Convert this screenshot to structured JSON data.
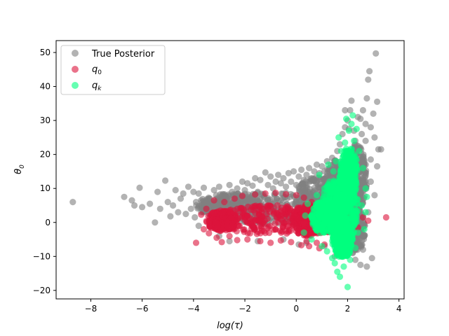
{
  "chart_data": {
    "type": "scatter",
    "title": "",
    "xlabel": "log(τ)",
    "ylabel_main": "θ",
    "ylabel_sub": "0",
    "xlim": [
      -9.35,
      4.2
    ],
    "ylim": [
      -22.5,
      53.5
    ],
    "xticks": [
      -8,
      -6,
      -4,
      -2,
      0,
      2,
      4
    ],
    "yticks": [
      -20,
      -10,
      0,
      10,
      20,
      30,
      40,
      50
    ],
    "grid": false,
    "legend": {
      "placement": "top-left",
      "entries": [
        {
          "label": "True Posterior",
          "color": "#808080"
        },
        {
          "label": "q",
          "sub": "0",
          "color": "#dc143c"
        },
        {
          "label": "q",
          "sub": "k",
          "color": "#00ff7f"
        }
      ]
    },
    "series": [
      {
        "name": "True Posterior",
        "color": "#808080",
        "points": [
          [
            -8.7,
            6
          ],
          [
            -6.7,
            7.5
          ],
          [
            -6.3,
            5
          ],
          [
            -6.4,
            6.5
          ],
          [
            -6.1,
            10.2
          ],
          [
            -6.0,
            4.5
          ],
          [
            -5.7,
            5.5
          ],
          [
            -5.5,
            0
          ],
          [
            -5.4,
            9
          ],
          [
            -5.3,
            4
          ],
          [
            -5.1,
            12.3
          ],
          [
            -5.0,
            6
          ],
          [
            -4.9,
            1.8
          ],
          [
            -4.8,
            5
          ],
          [
            -4.7,
            9.5
          ],
          [
            -4.6,
            3
          ],
          [
            -4.5,
            7
          ],
          [
            -4.4,
            8.5
          ],
          [
            -4.3,
            2.5
          ],
          [
            -4.2,
            10.5
          ],
          [
            -4.1,
            4
          ],
          [
            -4.0,
            9
          ],
          [
            -3.95,
            1.5
          ],
          [
            -3.9,
            6
          ],
          [
            -3.8,
            8.5
          ],
          [
            -3.7,
            3
          ],
          [
            -3.6,
            10.2
          ],
          [
            -3.5,
            5
          ],
          [
            -3.4,
            7
          ],
          [
            -3.3,
            2
          ],
          [
            -3.2,
            9.5
          ],
          [
            -3.1,
            4.5
          ],
          [
            -3.0,
            10.5
          ],
          [
            -2.9,
            3.5
          ],
          [
            -2.8,
            8
          ],
          [
            -2.7,
            6
          ],
          [
            -2.6,
            11
          ],
          [
            -2.5,
            9
          ],
          [
            -2.4,
            3
          ],
          [
            -2.3,
            10
          ],
          [
            -2.2,
            7.5
          ],
          [
            -2.1,
            12
          ],
          [
            -2.0,
            9.5
          ],
          [
            -1.9,
            11.5
          ],
          [
            -1.8,
            6
          ],
          [
            -1.7,
            10.8
          ],
          [
            -1.6,
            13
          ],
          [
            -1.5,
            9
          ],
          [
            -1.4,
            12.5
          ],
          [
            -1.3,
            8
          ],
          [
            -1.2,
            14.7
          ],
          [
            -1.1,
            11
          ],
          [
            -1.0,
            13.5
          ],
          [
            -0.9,
            10
          ],
          [
            -0.8,
            12
          ],
          [
            -0.7,
            14
          ],
          [
            -0.6,
            11.5
          ],
          [
            -0.5,
            13
          ],
          [
            -0.4,
            10.5
          ],
          [
            -0.3,
            14.5
          ],
          [
            -0.2,
            12
          ],
          [
            -0.1,
            15
          ],
          [
            0.0,
            11
          ],
          [
            0.1,
            13.5
          ],
          [
            0.2,
            15.5
          ],
          [
            0.3,
            12.5
          ],
          [
            0.4,
            14
          ],
          [
            0.5,
            16
          ],
          [
            0.6,
            13
          ],
          [
            0.7,
            15
          ],
          [
            0.8,
            17
          ],
          [
            0.9,
            14.5
          ],
          [
            1.0,
            16.5
          ],
          [
            1.1,
            15
          ],
          [
            1.2,
            18
          ],
          [
            1.3,
            16
          ],
          [
            1.4,
            19
          ],
          [
            1.5,
            17.5
          ],
          [
            1.6,
            21
          ],
          [
            1.7,
            23
          ],
          [
            1.8,
            26
          ],
          [
            1.9,
            28
          ],
          [
            2.0,
            30
          ],
          [
            2.1,
            33
          ],
          [
            2.15,
            35.8
          ],
          [
            2.25,
            27
          ],
          [
            2.3,
            24
          ],
          [
            2.4,
            31
          ],
          [
            2.5,
            22
          ],
          [
            2.55,
            26
          ],
          [
            2.6,
            33
          ],
          [
            2.7,
            29
          ],
          [
            2.75,
            36.5
          ],
          [
            2.8,
            42
          ],
          [
            2.85,
            44.5
          ],
          [
            2.9,
            28
          ],
          [
            3.0,
            32
          ],
          [
            3.05,
            25
          ],
          [
            3.1,
            49.7
          ],
          [
            3.15,
            35.5
          ],
          [
            3.2,
            21.5
          ],
          [
            3.3,
            21.5
          ],
          [
            3.15,
            16.5
          ],
          [
            2.9,
            18.5
          ],
          [
            3.05,
            8
          ],
          [
            2.95,
            -10.5
          ],
          [
            2.6,
            -8
          ],
          [
            2.5,
            -12.5
          ],
          [
            2.75,
            -13
          ],
          [
            2.3,
            -11
          ],
          [
            2.2,
            -9
          ],
          [
            1.5,
            -10
          ],
          [
            1.1,
            -7
          ],
          [
            0.4,
            -6
          ],
          [
            0.1,
            -6.5
          ],
          [
            -0.5,
            -5
          ],
          [
            -1.5,
            -5.5
          ],
          [
            -2.6,
            -5.5
          ],
          [
            -3.0,
            -4
          ],
          [
            -3.8,
            -1
          ],
          [
            -3.3,
            1
          ],
          [
            2.8,
            3
          ],
          [
            2.9,
            12
          ],
          [
            2.65,
            14
          ],
          [
            2.4,
            9.5
          ],
          [
            2.35,
            18
          ],
          [
            1.9,
            33
          ],
          [
            2.05,
            27.5
          ],
          [
            2.5,
            30.5
          ],
          [
            2.7,
            24
          ]
        ],
        "blobs": [
          {
            "cx": -0.8,
            "cy": 4.2,
            "rx": 2.6,
            "ry": 4.8
          },
          {
            "cx": -2.6,
            "cy": 5.0,
            "rx": 1.3,
            "ry": 3.6
          },
          {
            "cx": 0.9,
            "cy": 7.5,
            "rx": 1.0,
            "ry": 5.8
          },
          {
            "cx": 1.6,
            "cy": 10.0,
            "rx": 0.55,
            "ry": 8.5
          },
          {
            "cx": 2.3,
            "cy": 13.0,
            "rx": 0.45,
            "ry": 10.0
          },
          {
            "cx": 2.2,
            "cy": -2.0,
            "rx": 0.5,
            "ry": 7.0
          }
        ]
      },
      {
        "name": "q0",
        "color": "#dc143c",
        "points": [
          [
            -3.9,
            -6
          ],
          [
            -3.6,
            -2
          ],
          [
            -3.7,
            2.3
          ],
          [
            -3.5,
            4
          ],
          [
            -3.4,
            -3.2
          ],
          [
            -3.2,
            6.5
          ],
          [
            -3.1,
            -4.5
          ],
          [
            -2.9,
            -5.8
          ],
          [
            -2.8,
            6
          ],
          [
            -2.6,
            -4
          ],
          [
            -2.4,
            7
          ],
          [
            -2.3,
            -5.2
          ],
          [
            -2.1,
            7.8
          ],
          [
            -1.9,
            -5
          ],
          [
            -1.6,
            8.2
          ],
          [
            -1.4,
            -5.5
          ],
          [
            -1.2,
            8.5
          ],
          [
            -1.0,
            -6
          ],
          [
            -0.8,
            8.7
          ],
          [
            -0.6,
            -5.3
          ],
          [
            -0.4,
            8.3
          ],
          [
            -0.2,
            -5.8
          ],
          [
            0.0,
            8
          ],
          [
            0.2,
            -6.7
          ],
          [
            0.3,
            7.3
          ],
          [
            0.4,
            -5.5
          ],
          [
            0.5,
            -7
          ],
          [
            0.6,
            6
          ],
          [
            0.8,
            -6
          ],
          [
            1.1,
            -6.5
          ],
          [
            1.5,
            4.5
          ],
          [
            2.2,
            2
          ],
          [
            2.6,
            1.5
          ],
          [
            3.5,
            1.5
          ],
          [
            2.8,
            0.5
          ],
          [
            2.4,
            -1.5
          ],
          [
            1.9,
            -6.8
          ],
          [
            0.9,
            -7.6
          ]
        ],
        "blobs": [
          {
            "cx": -1.1,
            "cy": 0.8,
            "rx": 2.2,
            "ry": 4.3
          },
          {
            "cx": -2.9,
            "cy": 0.5,
            "rx": 0.6,
            "ry": 3.0
          },
          {
            "cx": 0.5,
            "cy": 0.5,
            "rx": 0.7,
            "ry": 4.8
          },
          {
            "cx": 1.5,
            "cy": 0.5,
            "rx": 0.7,
            "ry": 3.8
          }
        ]
      },
      {
        "name": "qk",
        "color": "#00ff7f",
        "points": [
          [
            0.35,
            2
          ],
          [
            0.3,
            -3
          ],
          [
            0.45,
            5.5
          ],
          [
            0.6,
            -5
          ],
          [
            0.8,
            8
          ],
          [
            1.0,
            -7
          ],
          [
            1.1,
            10
          ],
          [
            1.2,
            -8.5
          ],
          [
            1.3,
            12
          ],
          [
            1.4,
            -10.5
          ],
          [
            1.45,
            15
          ],
          [
            1.5,
            -12
          ],
          [
            1.55,
            18
          ],
          [
            1.6,
            -14.5
          ],
          [
            1.7,
            -16
          ],
          [
            1.75,
            21
          ],
          [
            1.85,
            -13
          ],
          [
            1.9,
            23.5
          ],
          [
            1.95,
            30.5
          ],
          [
            2.0,
            -19
          ],
          [
            2.05,
            27
          ],
          [
            2.1,
            -11
          ],
          [
            2.2,
            31.5
          ],
          [
            2.25,
            24
          ],
          [
            2.3,
            -7.5
          ],
          [
            2.35,
            27.5
          ],
          [
            2.4,
            -3
          ],
          [
            2.45,
            21
          ],
          [
            2.55,
            5
          ],
          [
            2.6,
            16
          ],
          [
            2.65,
            -2
          ],
          [
            2.7,
            10
          ],
          [
            2.75,
            7.5
          ],
          [
            2.7,
            3
          ],
          [
            1.65,
            25
          ],
          [
            1.8,
            -10
          ],
          [
            2.15,
            29
          ],
          [
            0.9,
            14
          ],
          [
            1.25,
            17
          ]
        ],
        "blobs": [
          {
            "cx": 1.55,
            "cy": 5.0,
            "rx": 0.55,
            "ry": 7.5
          },
          {
            "cx": 1.95,
            "cy": 5.0,
            "rx": 0.45,
            "ry": 10.5
          },
          {
            "cx": 1.15,
            "cy": 1.5,
            "rx": 0.6,
            "ry": 5.0
          },
          {
            "cx": 2.05,
            "cy": 15.0,
            "rx": 0.35,
            "ry": 7.0
          },
          {
            "cx": 1.8,
            "cy": -5.0,
            "rx": 0.4,
            "ry": 5.5
          }
        ]
      }
    ]
  }
}
